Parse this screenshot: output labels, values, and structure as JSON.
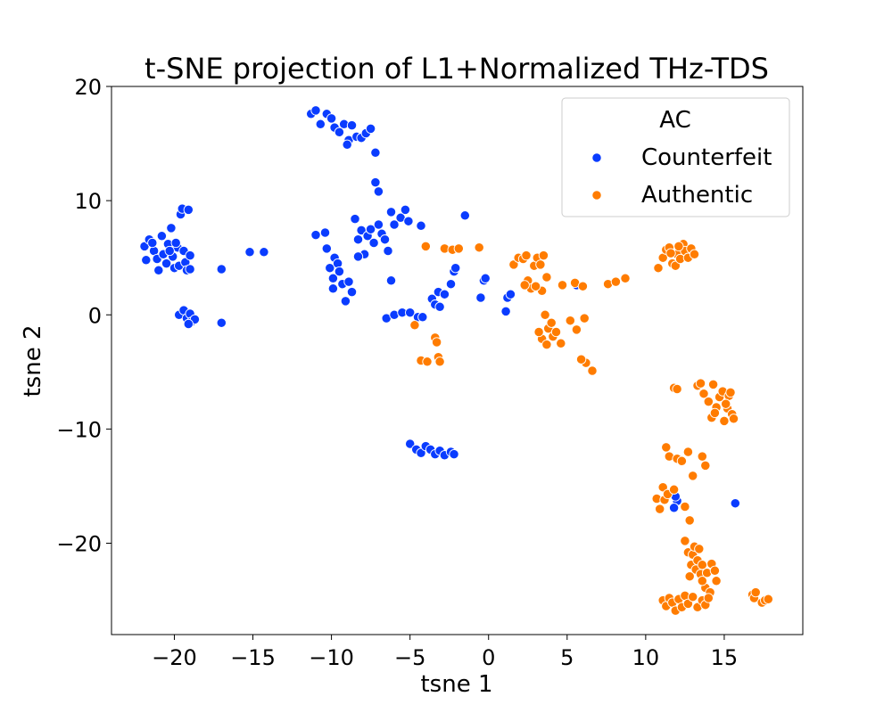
{
  "chart_data": {
    "type": "scatter",
    "title": "t-SNE projection of L1+Normalized THz-TDS",
    "xlabel": "tsne 1",
    "ylabel": "tsne 2",
    "xlim": [
      -24,
      20
    ],
    "ylim": [
      -28,
      20
    ],
    "x_ticks": [
      -20,
      -15,
      -10,
      -5,
      0,
      5,
      10,
      15
    ],
    "y_ticks": [
      -20,
      -10,
      0,
      10,
      20
    ],
    "x_tick_labels": [
      "−20",
      "−15",
      "−10",
      "−5",
      "0",
      "5",
      "10",
      "15"
    ],
    "y_tick_labels": [
      "−20",
      "−10",
      "0",
      "10",
      "20"
    ],
    "grid": false,
    "legend": {
      "title": "AC",
      "position": "top-right"
    },
    "series": [
      {
        "name": "Counterfeit",
        "color": "#0a3cff",
        "points": [
          [
            -21.9,
            6.0
          ],
          [
            -21.6,
            6.6
          ],
          [
            -21.3,
            5.6
          ],
          [
            -21.1,
            4.9
          ],
          [
            -20.8,
            6.9
          ],
          [
            -20.7,
            5.3
          ],
          [
            -20.5,
            4.5
          ],
          [
            -20.4,
            6.2
          ],
          [
            -20.2,
            7.6
          ],
          [
            -20.1,
            5.1
          ],
          [
            -20.0,
            4.1
          ],
          [
            -19.8,
            5.9
          ],
          [
            -19.7,
            4.3
          ],
          [
            -19.6,
            8.8
          ],
          [
            -19.5,
            9.3
          ],
          [
            -19.4,
            5.6
          ],
          [
            -19.3,
            4.6
          ],
          [
            -19.2,
            3.9
          ],
          [
            -19.1,
            9.2
          ],
          [
            -19.0,
            5.2
          ],
          [
            -19.0,
            4.0
          ],
          [
            -21.8,
            4.8
          ],
          [
            -21.0,
            3.9
          ],
          [
            -20.3,
            5.6
          ],
          [
            -19.9,
            6.3
          ],
          [
            -21.4,
            6.3
          ],
          [
            -19.7,
            0.0
          ],
          [
            -19.4,
            0.4
          ],
          [
            -19.2,
            -0.3
          ],
          [
            -19.0,
            0.1
          ],
          [
            -18.9,
            -0.6
          ],
          [
            -18.7,
            -0.4
          ],
          [
            -19.1,
            -0.8
          ],
          [
            -17.0,
            4.0
          ],
          [
            -17.0,
            -0.7
          ],
          [
            -15.2,
            5.5
          ],
          [
            -14.3,
            5.5
          ],
          [
            -11.3,
            17.6
          ],
          [
            -11.0,
            17.9
          ],
          [
            -10.7,
            16.7
          ],
          [
            -10.3,
            17.6
          ],
          [
            -10.0,
            17.2
          ],
          [
            -9.8,
            16.4
          ],
          [
            -9.5,
            16.0
          ],
          [
            -9.2,
            16.7
          ],
          [
            -8.9,
            15.3
          ],
          [
            -8.7,
            16.6
          ],
          [
            -8.4,
            15.6
          ],
          [
            -8.1,
            15.5
          ],
          [
            -7.8,
            15.9
          ],
          [
            -7.5,
            16.3
          ],
          [
            -9.0,
            14.9
          ],
          [
            -7.2,
            14.2
          ],
          [
            -7.2,
            11.6
          ],
          [
            -7.0,
            10.8
          ],
          [
            -11.0,
            7.0
          ],
          [
            -10.4,
            7.2
          ],
          [
            -10.3,
            5.8
          ],
          [
            -10.1,
            4.1
          ],
          [
            -9.9,
            3.2
          ],
          [
            -9.8,
            5.0
          ],
          [
            -9.6,
            4.5
          ],
          [
            -9.5,
            3.8
          ],
          [
            -9.3,
            2.7
          ],
          [
            -9.1,
            1.2
          ],
          [
            -8.9,
            2.9
          ],
          [
            -8.7,
            2.0
          ],
          [
            -8.5,
            8.4
          ],
          [
            -8.3,
            6.6
          ],
          [
            -8.1,
            7.4
          ],
          [
            -7.9,
            5.3
          ],
          [
            -7.7,
            6.9
          ],
          [
            -7.5,
            7.5
          ],
          [
            -7.3,
            6.3
          ],
          [
            -7.0,
            7.9
          ],
          [
            -6.8,
            7.1
          ],
          [
            -6.6,
            6.6
          ],
          [
            -6.4,
            5.6
          ],
          [
            -8.3,
            5.1
          ],
          [
            -9.9,
            2.3
          ],
          [
            -6.2,
            9.0
          ],
          [
            -5.6,
            8.5
          ],
          [
            -5.3,
            9.2
          ],
          [
            -4.3,
            7.8
          ],
          [
            -6.0,
            7.9
          ],
          [
            -5.1,
            8.2
          ],
          [
            -6.5,
            -0.3
          ],
          [
            -6.0,
            0.0
          ],
          [
            -5.5,
            0.2
          ],
          [
            -5.0,
            0.2
          ],
          [
            -4.5,
            -0.2
          ],
          [
            -4.2,
            -0.2
          ],
          [
            -3.6,
            1.4
          ],
          [
            -3.4,
            0.9
          ],
          [
            -3.2,
            2.0
          ],
          [
            -2.8,
            1.8
          ],
          [
            -2.4,
            2.7
          ],
          [
            -2.2,
            3.8
          ],
          [
            -2.1,
            4.1
          ],
          [
            -1.5,
            8.7
          ],
          [
            -3.1,
            0.7
          ],
          [
            -6.2,
            3.0
          ],
          [
            -0.5,
            1.5
          ],
          [
            -0.3,
            3.0
          ],
          [
            -0.2,
            3.2
          ],
          [
            1.1,
            0.3
          ],
          [
            1.2,
            1.5
          ],
          [
            1.4,
            1.8
          ],
          [
            -5.0,
            -11.3
          ],
          [
            -4.6,
            -11.8
          ],
          [
            -4.3,
            -12.1
          ],
          [
            -4.0,
            -11.5
          ],
          [
            -3.7,
            -11.8
          ],
          [
            -3.4,
            -12.2
          ],
          [
            -3.1,
            -11.9
          ],
          [
            -2.8,
            -12.3
          ],
          [
            -2.4,
            -12.0
          ],
          [
            -2.2,
            -12.2
          ],
          [
            5.6,
            2.6
          ],
          [
            12.0,
            -16.3
          ],
          [
            11.8,
            -16.9
          ],
          [
            11.9,
            -15.9
          ],
          [
            15.7,
            -16.5
          ]
        ]
      },
      {
        "name": "Authentic",
        "color": "#ff7c00",
        "points": [
          [
            -4.7,
            -0.9
          ],
          [
            -4.3,
            -4.0
          ],
          [
            -4.0,
            6.0
          ],
          [
            -3.4,
            -2.0
          ],
          [
            -3.2,
            -3.7
          ],
          [
            -3.1,
            -4.1
          ],
          [
            -2.8,
            5.8
          ],
          [
            -2.3,
            5.7
          ],
          [
            -1.9,
            5.8
          ],
          [
            -0.6,
            5.9
          ],
          [
            -3.9,
            -4.1
          ],
          [
            -3.3,
            -2.4
          ],
          [
            1.6,
            4.4
          ],
          [
            1.9,
            5.0
          ],
          [
            2.2,
            4.9
          ],
          [
            2.4,
            5.2
          ],
          [
            2.5,
            3.0
          ],
          [
            2.7,
            2.3
          ],
          [
            2.9,
            4.3
          ],
          [
            3.1,
            5.0
          ],
          [
            3.3,
            4.4
          ],
          [
            3.5,
            5.2
          ],
          [
            3.4,
            2.1
          ],
          [
            3.7,
            3.3
          ],
          [
            3.0,
            2.5
          ],
          [
            2.3,
            2.6
          ],
          [
            3.6,
            0.0
          ],
          [
            3.8,
            -1.2
          ],
          [
            3.4,
            -2.1
          ],
          [
            3.7,
            -2.6
          ],
          [
            4.1,
            -1.9
          ],
          [
            4.3,
            -1.5
          ],
          [
            4.6,
            -2.5
          ],
          [
            5.2,
            -0.5
          ],
          [
            5.6,
            -1.3
          ],
          [
            4.0,
            -0.7
          ],
          [
            3.2,
            -1.5
          ],
          [
            4.7,
            2.6
          ],
          [
            5.5,
            2.8
          ],
          [
            6.0,
            2.5
          ],
          [
            6.1,
            -0.3
          ],
          [
            6.2,
            -4.2
          ],
          [
            6.6,
            -4.9
          ],
          [
            5.9,
            -3.9
          ],
          [
            7.6,
            2.7
          ],
          [
            8.1,
            2.9
          ],
          [
            8.7,
            3.2
          ],
          [
            10.8,
            4.1
          ],
          [
            11.1,
            5.0
          ],
          [
            11.3,
            5.7
          ],
          [
            11.5,
            5.9
          ],
          [
            11.7,
            4.5
          ],
          [
            11.9,
            4.3
          ],
          [
            12.0,
            5.3
          ],
          [
            12.2,
            4.9
          ],
          [
            12.4,
            6.2
          ],
          [
            12.5,
            5.6
          ],
          [
            12.7,
            5.0
          ],
          [
            12.9,
            5.8
          ],
          [
            13.1,
            5.3
          ],
          [
            11.6,
            5.4
          ],
          [
            12.1,
            6.0
          ],
          [
            11.8,
            -6.4
          ],
          [
            12.0,
            -6.5
          ],
          [
            13.3,
            -6.2
          ],
          [
            13.5,
            -6.0
          ],
          [
            13.7,
            -6.9
          ],
          [
            14.0,
            -7.6
          ],
          [
            14.2,
            -9.0
          ],
          [
            14.3,
            -6.1
          ],
          [
            14.5,
            -8.1
          ],
          [
            14.7,
            -7.2
          ],
          [
            14.9,
            -6.7
          ],
          [
            15.0,
            -9.3
          ],
          [
            15.2,
            -8.2
          ],
          [
            15.3,
            -7.1
          ],
          [
            15.4,
            -6.8
          ],
          [
            15.5,
            -8.7
          ],
          [
            15.6,
            -9.1
          ],
          [
            14.4,
            -8.6
          ],
          [
            15.1,
            -7.8
          ],
          [
            10.7,
            -16.1
          ],
          [
            10.9,
            -17.0
          ],
          [
            11.1,
            -15.1
          ],
          [
            11.2,
            -16.2
          ],
          [
            11.3,
            -11.6
          ],
          [
            11.4,
            -15.7
          ],
          [
            11.5,
            -12.4
          ],
          [
            11.8,
            -15.3
          ],
          [
            12.0,
            -12.6
          ],
          [
            12.3,
            -12.8
          ],
          [
            12.5,
            -16.8
          ],
          [
            12.7,
            -12.0
          ],
          [
            12.8,
            -18.0
          ],
          [
            13.0,
            -14.1
          ],
          [
            13.6,
            -12.4
          ],
          [
            13.8,
            -13.2
          ],
          [
            12.5,
            -19.8
          ],
          [
            12.7,
            -20.8
          ],
          [
            12.9,
            -21.9
          ],
          [
            13.0,
            -21.0
          ],
          [
            13.1,
            -20.3
          ],
          [
            13.2,
            -22.3
          ],
          [
            13.3,
            -21.5
          ],
          [
            13.4,
            -20.5
          ],
          [
            13.5,
            -22.7
          ],
          [
            13.6,
            -21.9
          ],
          [
            13.8,
            -23.9
          ],
          [
            13.9,
            -22.6
          ],
          [
            14.1,
            -24.3
          ],
          [
            14.2,
            -21.8
          ],
          [
            14.4,
            -22.4
          ],
          [
            14.5,
            -23.3
          ],
          [
            12.8,
            -22.9
          ],
          [
            13.6,
            -23.3
          ],
          [
            11.1,
            -25.0
          ],
          [
            11.3,
            -25.5
          ],
          [
            11.5,
            -24.8
          ],
          [
            11.7,
            -25.2
          ],
          [
            11.9,
            -25.9
          ],
          [
            12.1,
            -24.9
          ],
          [
            12.3,
            -25.6
          ],
          [
            12.5,
            -24.6
          ],
          [
            12.7,
            -25.3
          ],
          [
            13.0,
            -24.7
          ],
          [
            13.3,
            -25.6
          ],
          [
            13.6,
            -25.0
          ],
          [
            13.8,
            -25.4
          ],
          [
            14.0,
            -24.8
          ],
          [
            16.8,
            -24.5
          ],
          [
            16.9,
            -24.8
          ],
          [
            17.0,
            -24.3
          ],
          [
            17.4,
            -25.2
          ],
          [
            17.6,
            -25.0
          ],
          [
            17.8,
            -24.9
          ]
        ]
      }
    ]
  }
}
